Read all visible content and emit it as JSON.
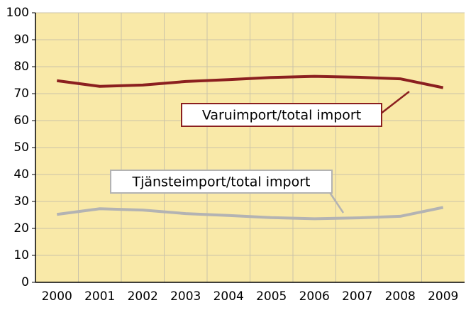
{
  "chart_data": {
    "type": "line",
    "categories": [
      "2000",
      "2001",
      "2002",
      "2003",
      "2004",
      "2005",
      "2006",
      "2007",
      "2008",
      "2009"
    ],
    "series": [
      {
        "name": "Varuimport/total import",
        "color": "#8b1f1f",
        "values": [
          74.8,
          72.7,
          73.2,
          74.5,
          75.2,
          76.0,
          76.4,
          76.1,
          75.5,
          72.2
        ]
      },
      {
        "name": "Tjänsteimport/total import",
        "color": "#b3b3b3",
        "values": [
          25.2,
          27.3,
          26.8,
          25.5,
          24.8,
          24.0,
          23.6,
          23.9,
          24.5,
          27.8
        ]
      }
    ],
    "ylim": [
      0,
      100
    ],
    "yticks": [
      0,
      10,
      20,
      30,
      40,
      50,
      60,
      70,
      80,
      90,
      100
    ],
    "grid": true
  }
}
